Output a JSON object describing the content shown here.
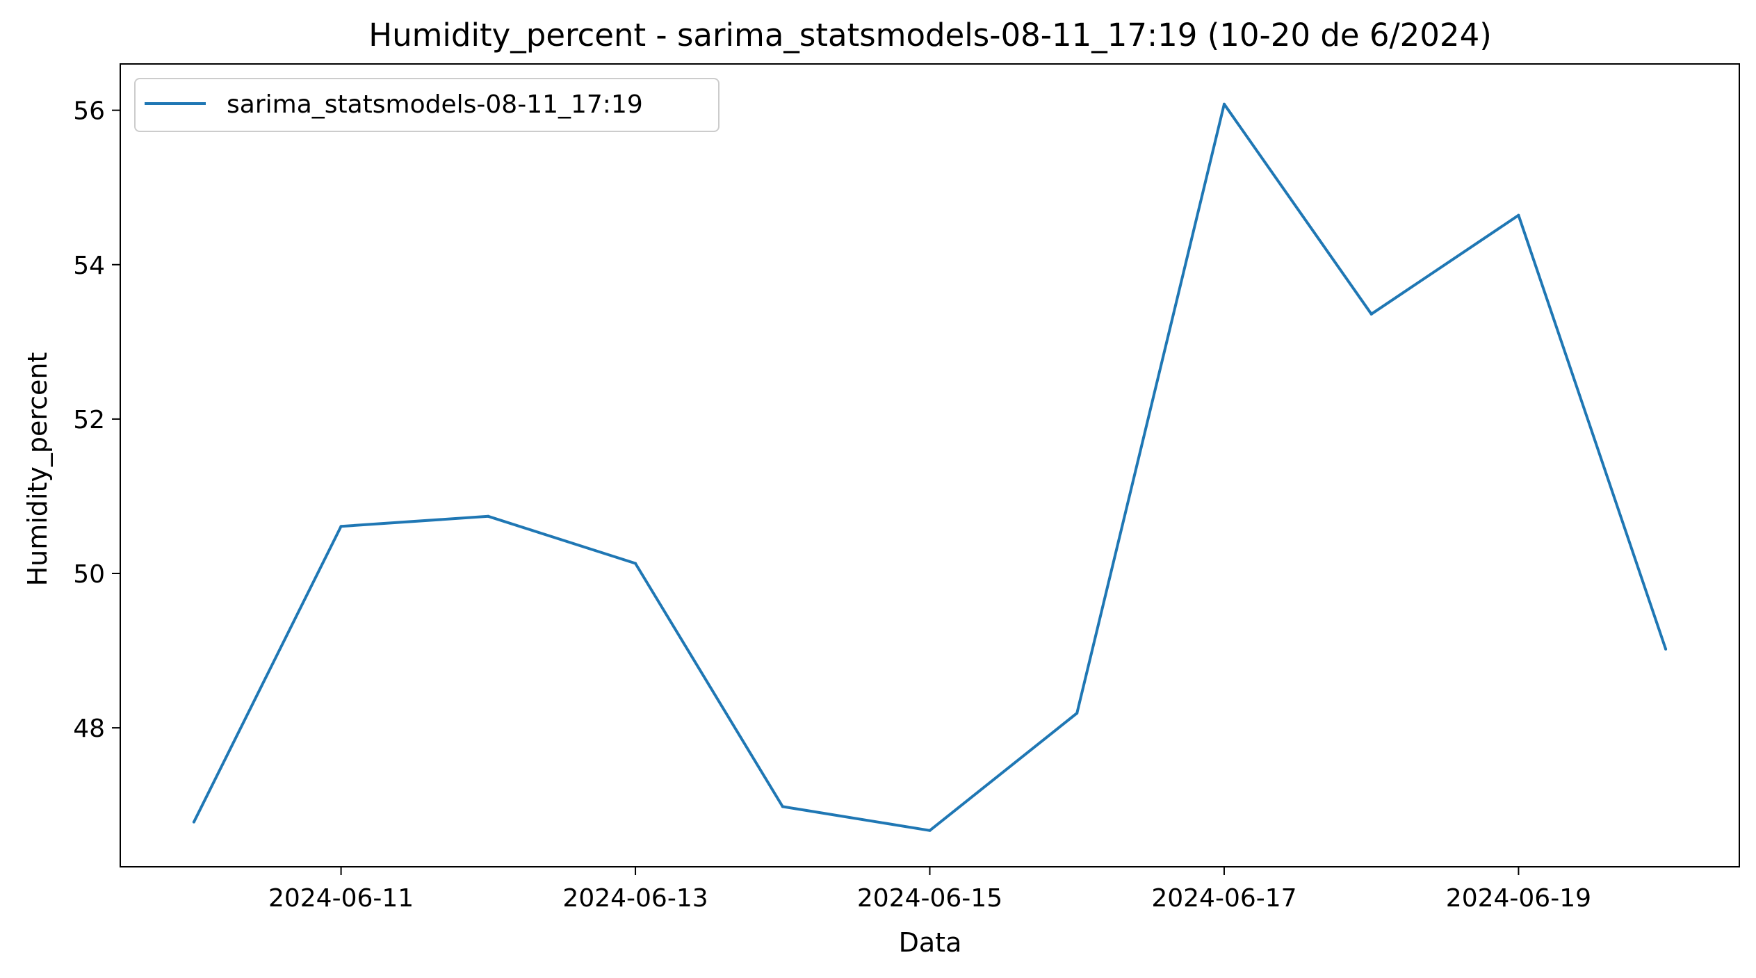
{
  "chart_data": {
    "type": "line",
    "title": "Humidity_percent - sarima_statsmodels-08-11_17:19 (10-20 de 6/2024)",
    "xlabel": "Data",
    "ylabel": "Humidity_percent",
    "x": [
      "2024-06-10",
      "2024-06-11",
      "2024-06-12",
      "2024-06-13",
      "2024-06-14",
      "2024-06-15",
      "2024-06-16",
      "2024-06-17",
      "2024-06-18",
      "2024-06-19",
      "2024-06-20"
    ],
    "xlim": [
      "2024-06-09T12:00",
      "2024-06-20T12:00"
    ],
    "xticks": [
      "2024-06-11",
      "2024-06-13",
      "2024-06-15",
      "2024-06-17",
      "2024-06-19"
    ],
    "ylim": [
      46.2,
      56.6
    ],
    "yticks": [
      48,
      50,
      52,
      54,
      56
    ],
    "series": [
      {
        "name": "sarima_statsmodels-08-11_17:19",
        "color": "#1f77b4",
        "values": [
          46.78,
          50.61,
          50.74,
          50.13,
          46.98,
          46.67,
          48.19,
          56.08,
          53.36,
          54.64,
          49.02
        ]
      }
    ],
    "legend": "top-left",
    "grid": false
  }
}
